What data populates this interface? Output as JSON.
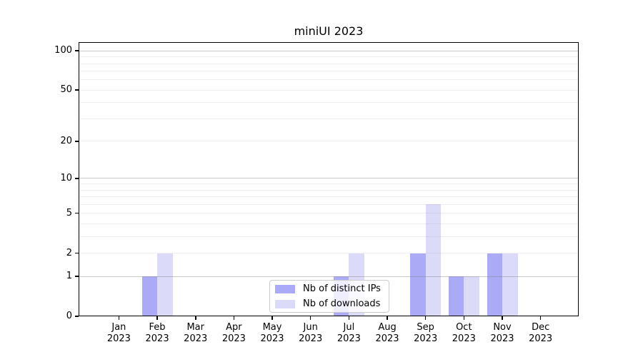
{
  "title": "miniUI 2023",
  "chart_data": {
    "type": "bar",
    "title": "miniUI 2023",
    "xlabel": "",
    "ylabel": "",
    "yscale": "log1p",
    "ylim": [
      0,
      117
    ],
    "grid": "both",
    "legend_position": "lower center inside",
    "categories": [
      "Jan",
      "Feb",
      "Mar",
      "Apr",
      "May",
      "Jun",
      "Jul",
      "Aug",
      "Sep",
      "Oct",
      "Nov",
      "Dec"
    ],
    "year_label": "2023",
    "yticks": [
      0,
      1,
      2,
      5,
      10,
      20,
      50,
      100
    ],
    "minor_grid_values": [
      2,
      3,
      4,
      5,
      6,
      7,
      8,
      9,
      20,
      30,
      40,
      50,
      60,
      70,
      80,
      90
    ],
    "major_grid_values": [
      1,
      10,
      100
    ],
    "series": [
      {
        "name": "Nb of distinct IPs",
        "color": "#aaaaf7",
        "values": [
          0,
          1,
          0,
          0,
          0,
          0,
          1,
          0,
          2,
          1,
          2,
          0
        ]
      },
      {
        "name": "Nb of downloads",
        "color": "#dbdbf9",
        "values": [
          0,
          2,
          0,
          0,
          0,
          0,
          2,
          0,
          6,
          1,
          2,
          0
        ]
      }
    ],
    "colors": {
      "distinct_ips": "#aaaaf7",
      "downloads": "#dbdbf9",
      "spine": "#000000",
      "major_grid": "#c8c8c8",
      "minor_grid": "#efefef",
      "legend_border": "#cccccc"
    }
  }
}
